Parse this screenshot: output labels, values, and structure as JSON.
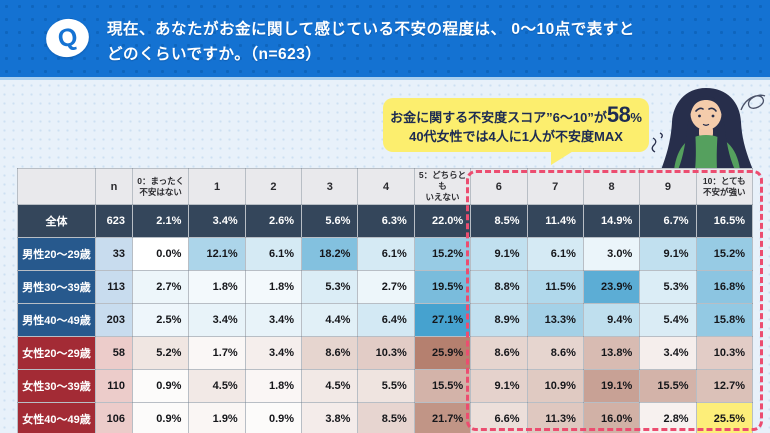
{
  "question": {
    "badge": "Q",
    "line1": "現在、あなたがお金に関して感じている不安の程度は、 0〜10点で表すと",
    "line2": "どのくらいですか。（n=623）"
  },
  "callout": {
    "line1_prefix": "お金に関する不安度スコア”6〜10”が",
    "line1_big": "58",
    "line1_unit": "%",
    "line2": "40代女性では4人に1人が不安度MAX"
  },
  "chart_data": {
    "type": "table",
    "title": "現在、あなたがお金に関して感じている不安の程度は、0〜10点で表すとどのくらいですか。（n=623）",
    "corner_header": "",
    "n_header": "n",
    "score_headers": [
      "0：まったく\n不安はない",
      "1",
      "2",
      "3",
      "4",
      "5：どちらとも\nいえない",
      "6",
      "7",
      "8",
      "9",
      "10：とても\n不安が強い"
    ],
    "rows": [
      {
        "label": "全体",
        "group": "total",
        "n": "623",
        "values": [
          2.1,
          3.4,
          2.6,
          5.6,
          6.3,
          22.0,
          8.5,
          11.4,
          14.9,
          6.7,
          16.5
        ]
      },
      {
        "label": "男性20〜29歳",
        "group": "male",
        "n": "33",
        "values": [
          0.0,
          12.1,
          6.1,
          18.2,
          6.1,
          15.2,
          9.1,
          6.1,
          3.0,
          9.1,
          15.2
        ]
      },
      {
        "label": "男性30〜39歳",
        "group": "male",
        "n": "113",
        "values": [
          2.7,
          1.8,
          1.8,
          5.3,
          2.7,
          19.5,
          8.8,
          11.5,
          23.9,
          5.3,
          16.8
        ]
      },
      {
        "label": "男性40〜49歳",
        "group": "male",
        "n": "203",
        "values": [
          2.5,
          3.4,
          3.4,
          4.4,
          6.4,
          27.1,
          8.9,
          13.3,
          9.4,
          5.4,
          15.8
        ]
      },
      {
        "label": "女性20〜29歳",
        "group": "female",
        "n": "58",
        "values": [
          5.2,
          1.7,
          3.4,
          8.6,
          10.3,
          25.9,
          8.6,
          8.6,
          13.8,
          3.4,
          10.3
        ]
      },
      {
        "label": "女性30〜39歳",
        "group": "female",
        "n": "110",
        "values": [
          0.9,
          4.5,
          1.8,
          4.5,
          5.5,
          15.5,
          9.1,
          10.9,
          19.1,
          15.5,
          12.7
        ]
      },
      {
        "label": "女性40〜49歳",
        "group": "female",
        "n": "106",
        "values": [
          0.9,
          1.9,
          0.9,
          3.8,
          8.5,
          21.7,
          6.6,
          11.3,
          16.0,
          2.8,
          25.5
        ]
      }
    ],
    "value_suffix": "%",
    "highlight_cell": {
      "row_label": "女性40〜49歳",
      "score_index": 10
    },
    "dashed_box_scores": {
      "from": "6",
      "to": "10"
    },
    "legend_position": "none",
    "grid": true
  },
  "styles": {
    "banner_blue": "#1472d2",
    "banner_dot_blue": "#0e65bd",
    "page_bg": "#e8f1fa",
    "callout_yellow": "#fcee6e",
    "callout_text_navy": "#1d2b52",
    "dash_pink": "#ec4d70",
    "header_bg": "#e9e9ec",
    "total_row_bg": "#34465b",
    "male_label_bg": "#27598d",
    "female_label_bg": "#a32b35",
    "male_n_bg": "#c8dcee",
    "female_n_bg": "#ecccca",
    "male_heat_base": "#46a2cf",
    "female_heat_base": "#b5806f",
    "highlight_yellow": "#fdee79",
    "woman_hair": "#272e4b",
    "woman_skin": "#f4ccab",
    "woman_sweater": "#55a05e"
  }
}
